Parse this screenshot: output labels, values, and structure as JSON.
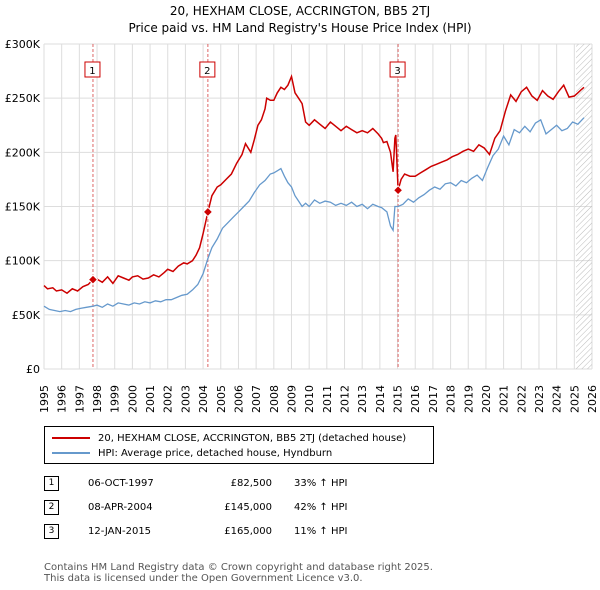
{
  "chart_data": {
    "type": "line",
    "title": "20, HEXHAM CLOSE, ACCRINGTON, BB5 2TJ",
    "subtitle": "Price paid vs. HM Land Registry's House Price Index (HPI)",
    "xlim": [
      1995,
      2026
    ],
    "ylim": [
      0,
      300000
    ],
    "x_ticks": [
      "1995",
      "1996",
      "1997",
      "1998",
      "1999",
      "2000",
      "2001",
      "2002",
      "2003",
      "2004",
      "2005",
      "2006",
      "2007",
      "2008",
      "2009",
      "2010",
      "2011",
      "2012",
      "2013",
      "2014",
      "2015",
      "2016",
      "2017",
      "2018",
      "2019",
      "2020",
      "2021",
      "2022",
      "2023",
      "2024",
      "2025",
      "2026"
    ],
    "y_ticks": [
      {
        "value": 0,
        "label": "£0"
      },
      {
        "value": 50000,
        "label": "£50K"
      },
      {
        "value": 100000,
        "label": "£100K"
      },
      {
        "value": 150000,
        "label": "£150K"
      },
      {
        "value": 200000,
        "label": "£200K"
      },
      {
        "value": 250000,
        "label": "£250K"
      },
      {
        "value": 300000,
        "label": "£300K"
      }
    ],
    "forecast_start": 2025.1,
    "series": [
      {
        "name": "20, HEXHAM CLOSE, ACCRINGTON, BB5 2TJ (detached house)",
        "color": "#cc0000",
        "x": [
          1995.0,
          1995.2,
          1995.5,
          1995.7,
          1996.0,
          1996.3,
          1996.6,
          1996.9,
          1997.2,
          1997.5,
          1997.77,
          1998.0,
          1998.3,
          1998.6,
          1998.9,
          1999.2,
          1999.5,
          1999.8,
          2000.0,
          2000.3,
          2000.6,
          2000.9,
          2001.2,
          2001.5,
          2001.8,
          2002.0,
          2002.3,
          2002.6,
          2002.9,
          2003.1,
          2003.4,
          2003.6,
          2003.8,
          2004.0,
          2004.27,
          2004.5,
          2004.8,
          2005.0,
          2005.3,
          2005.6,
          2005.9,
          2006.2,
          2006.4,
          2006.7,
          2006.9,
          2007.1,
          2007.3,
          2007.5,
          2007.6,
          2007.8,
          2008.0,
          2008.2,
          2008.4,
          2008.6,
          2008.8,
          2009.0,
          2009.2,
          2009.4,
          2009.6,
          2009.8,
          2010.0,
          2010.3,
          2010.6,
          2010.9,
          2011.2,
          2011.5,
          2011.8,
          2012.1,
          2012.4,
          2012.7,
          2013.0,
          2013.3,
          2013.6,
          2013.9,
          2014.1,
          2014.2,
          2014.4,
          2014.6,
          2014.75,
          2014.85,
          2014.9,
          2015.03,
          2015.2,
          2015.4,
          2015.7,
          2016.0,
          2016.3,
          2016.6,
          2016.9,
          2017.2,
          2017.5,
          2017.8,
          2018.1,
          2018.4,
          2018.7,
          2019.0,
          2019.3,
          2019.6,
          2019.9,
          2020.2,
          2020.5,
          2020.8,
          2021.1,
          2021.4,
          2021.7,
          2022.0,
          2022.3,
          2022.6,
          2022.9,
          2023.2,
          2023.5,
          2023.8,
          2024.1,
          2024.4,
          2024.7,
          2025.0,
          2025.2,
          2025.4,
          2025.55
        ],
        "y": [
          77000,
          74000,
          75000,
          72000,
          73000,
          70000,
          74000,
          72000,
          76000,
          78000,
          82500,
          83000,
          80000,
          85000,
          79000,
          86000,
          84000,
          82000,
          85000,
          86000,
          83000,
          84000,
          87000,
          85000,
          89000,
          92000,
          90000,
          95000,
          98000,
          97000,
          100000,
          105000,
          112000,
          125000,
          145000,
          160000,
          168000,
          170000,
          175000,
          180000,
          190000,
          198000,
          208000,
          200000,
          212000,
          225000,
          230000,
          240000,
          250000,
          248000,
          248000,
          255000,
          260000,
          258000,
          262000,
          270000,
          255000,
          250000,
          245000,
          228000,
          225000,
          230000,
          226000,
          222000,
          228000,
          224000,
          220000,
          224000,
          221000,
          218000,
          220000,
          218000,
          222000,
          217000,
          213000,
          209000,
          210000,
          200000,
          182000,
          213000,
          216000,
          165000,
          175000,
          180000,
          178000,
          178000,
          181000,
          184000,
          187000,
          189000,
          191000,
          193000,
          196000,
          198000,
          201000,
          203000,
          201000,
          207000,
          204000,
          198000,
          213000,
          220000,
          238000,
          253000,
          247000,
          256000,
          260000,
          252000,
          248000,
          257000,
          252000,
          249000,
          256000,
          262000,
          251000,
          252000,
          255000,
          258000,
          260000
        ]
      },
      {
        "name": "HPI: Average price, detached house, Hyndburn",
        "color": "#6699cc",
        "x": [
          1995.0,
          1995.3,
          1995.6,
          1995.9,
          1996.2,
          1996.5,
          1996.8,
          1997.1,
          1997.4,
          1997.77,
          1998.0,
          1998.3,
          1998.6,
          1998.9,
          1999.2,
          1999.5,
          1999.8,
          2000.1,
          2000.4,
          2000.7,
          2001.0,
          2001.3,
          2001.6,
          2001.9,
          2002.2,
          2002.5,
          2002.8,
          2003.1,
          2003.4,
          2003.7,
          2004.0,
          2004.27,
          2004.5,
          2004.8,
          2005.1,
          2005.4,
          2005.7,
          2006.0,
          2006.3,
          2006.6,
          2006.9,
          2007.2,
          2007.5,
          2007.8,
          2008.0,
          2008.2,
          2008.4,
          2008.6,
          2008.8,
          2009.0,
          2009.2,
          2009.4,
          2009.6,
          2009.8,
          2010.0,
          2010.3,
          2010.6,
          2010.9,
          2011.2,
          2011.5,
          2011.8,
          2012.1,
          2012.4,
          2012.7,
          2013.0,
          2013.3,
          2013.6,
          2013.9,
          2014.1,
          2014.4,
          2014.6,
          2014.75,
          2014.85,
          2015.03,
          2015.3,
          2015.6,
          2015.9,
          2016.2,
          2016.5,
          2016.8,
          2017.1,
          2017.4,
          2017.7,
          2018.0,
          2018.3,
          2018.6,
          2018.9,
          2019.2,
          2019.5,
          2019.8,
          2020.1,
          2020.4,
          2020.7,
          2021.0,
          2021.3,
          2021.6,
          2021.9,
          2022.2,
          2022.5,
          2022.8,
          2023.1,
          2023.4,
          2023.7,
          2024.0,
          2024.3,
          2024.6,
          2024.9,
          2025.2,
          2025.55
        ],
        "y": [
          58000,
          55000,
          54000,
          53000,
          54000,
          53000,
          55000,
          56000,
          57000,
          58000,
          59000,
          57000,
          60000,
          58000,
          61000,
          60000,
          59000,
          61000,
          60000,
          62000,
          61000,
          63000,
          62000,
          64000,
          64000,
          66000,
          68000,
          69000,
          73000,
          78000,
          88000,
          102000,
          112000,
          120000,
          130000,
          135000,
          140000,
          145000,
          150000,
          155000,
          163000,
          170000,
          174000,
          180000,
          181000,
          183000,
          185000,
          178000,
          172000,
          168000,
          160000,
          155000,
          150000,
          153000,
          150000,
          156000,
          153000,
          155000,
          154000,
          151000,
          153000,
          151000,
          154000,
          150000,
          152000,
          148000,
          152000,
          150000,
          149000,
          145000,
          132000,
          128000,
          150000,
          150000,
          152000,
          157000,
          154000,
          158000,
          161000,
          165000,
          168000,
          166000,
          171000,
          172000,
          169000,
          174000,
          172000,
          176000,
          179000,
          174000,
          186000,
          197000,
          203000,
          215000,
          207000,
          221000,
          218000,
          224000,
          219000,
          227000,
          230000,
          217000,
          221000,
          225000,
          220000,
          222000,
          228000,
          226000,
          232000
        ]
      }
    ],
    "markers": [
      {
        "label": "1",
        "x": 1997.77,
        "y": 82500
      },
      {
        "label": "2",
        "x": 2004.27,
        "y": 145000
      },
      {
        "label": "3",
        "x": 2015.03,
        "y": 165000
      }
    ]
  },
  "legend": {
    "items": [
      {
        "label": "20, HEXHAM CLOSE, ACCRINGTON, BB5 2TJ (detached house)",
        "color": "#cc0000"
      },
      {
        "label": "HPI: Average price, detached house, Hyndburn",
        "color": "#6699cc"
      }
    ]
  },
  "sales_table": [
    {
      "num": "1",
      "date": "06-OCT-1997",
      "price": "£82,500",
      "hpi": "33% ↑ HPI"
    },
    {
      "num": "2",
      "date": "08-APR-2004",
      "price": "£145,000",
      "hpi": "42% ↑ HPI"
    },
    {
      "num": "3",
      "date": "12-JAN-2015",
      "price": "£165,000",
      "hpi": "11% ↑ HPI"
    }
  ],
  "footer": {
    "line1": "Contains HM Land Registry data © Crown copyright and database right 2025.",
    "line2": "This data is licensed under the Open Government Licence v3.0."
  }
}
